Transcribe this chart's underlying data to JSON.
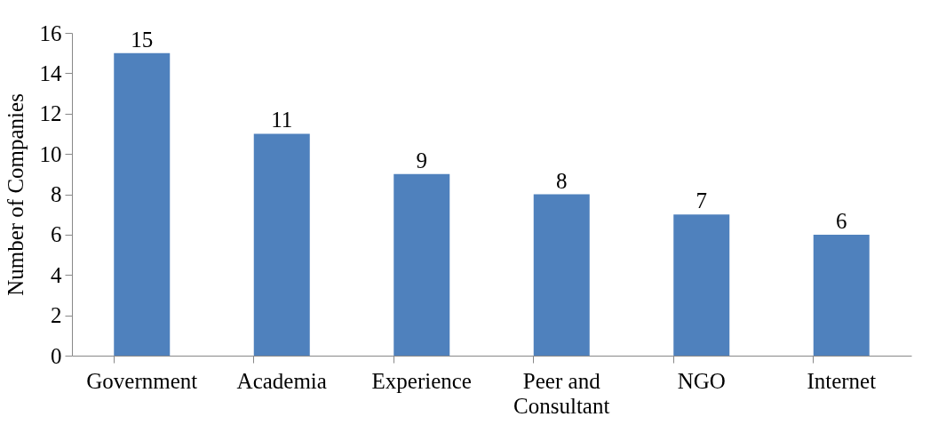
{
  "chart_data": {
    "type": "bar",
    "ylabel": "Number of Companies",
    "categories": [
      "Government",
      "Academia",
      "Experience",
      "Peer and Consultant",
      "NGO",
      "Internet"
    ],
    "values": [
      15,
      11,
      9,
      8,
      7,
      6
    ],
    "color": "#4f81bd",
    "ylim": [
      0,
      16
    ],
    "yticks": [
      0,
      2,
      4,
      6,
      8,
      10,
      12,
      14,
      16
    ],
    "data_labels": true
  }
}
